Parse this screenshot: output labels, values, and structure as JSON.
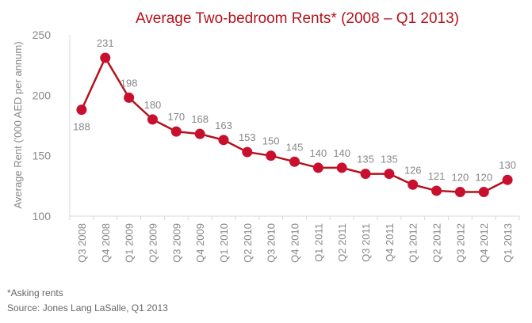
{
  "chart_data": {
    "type": "line",
    "title": "Average Two-bedroom Rents* (2008 – Q1 2013)",
    "ylabel": "Average Rent ('000 AED per annum)",
    "xlabel": "",
    "ylim": [
      100,
      250
    ],
    "yticks": [
      100,
      150,
      200,
      250
    ],
    "grid": false,
    "categories": [
      "Q3 2008",
      "Q4 2008",
      "Q1 2009",
      "Q2 2009",
      "Q3 2009",
      "Q4 2009",
      "Q1 2010",
      "Q2 2010",
      "Q3 2010",
      "Q4 2010",
      "Q1 2011",
      "Q2 2011",
      "Q3 2011",
      "Q4 2011",
      "Q1 2012",
      "Q2 2012",
      "Q3 2012",
      "Q4 2012",
      "Q1 2013"
    ],
    "values": [
      188,
      231,
      198,
      180,
      170,
      168,
      163,
      153,
      150,
      145,
      140,
      140,
      135,
      135,
      126,
      121,
      120,
      120,
      130
    ],
    "colors": {
      "line": "#b5121b",
      "marker": "#c8102e",
      "title": "#b5121b",
      "text": "#888888",
      "axis": "#d9d9d9"
    }
  },
  "notes": {
    "footnote": "*Asking rents",
    "source": "Source: Jones Lang LaSalle, Q1 2013"
  }
}
